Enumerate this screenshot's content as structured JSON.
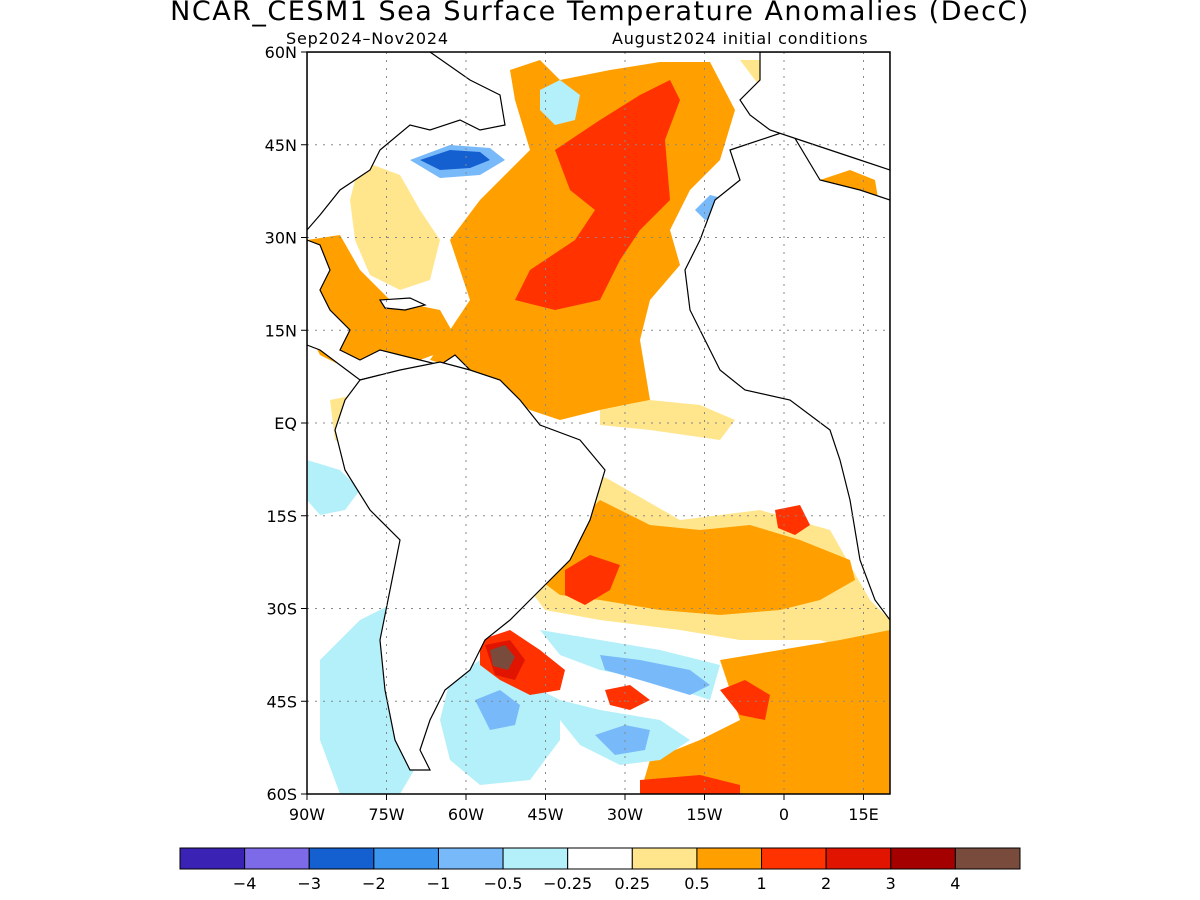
{
  "title": "NCAR_CESM1 Sea Surface Temperature Anomalies (DecC)",
  "subtitle_left": "Sep2024–Nov2024",
  "subtitle_right": "August2024 initial conditions",
  "map": {
    "lon_range": [
      -90,
      20
    ],
    "lat_range": [
      -60,
      60
    ],
    "lat_labels": [
      {
        "value": 60,
        "text": "60N"
      },
      {
        "value": 45,
        "text": "45N"
      },
      {
        "value": 30,
        "text": "30N"
      },
      {
        "value": 15,
        "text": "15N"
      },
      {
        "value": 0,
        "text": "EQ"
      },
      {
        "value": -15,
        "text": "15S"
      },
      {
        "value": -30,
        "text": "30S"
      },
      {
        "value": -45,
        "text": "45S"
      },
      {
        "value": -60,
        "text": "60S"
      }
    ],
    "lon_labels": [
      {
        "value": -90,
        "text": "90W"
      },
      {
        "value": -75,
        "text": "75W"
      },
      {
        "value": -60,
        "text": "60W"
      },
      {
        "value": -45,
        "text": "45W"
      },
      {
        "value": -30,
        "text": "30W"
      },
      {
        "value": -15,
        "text": "15W"
      },
      {
        "value": 0,
        "text": "0"
      },
      {
        "value": 15,
        "text": "15E"
      }
    ]
  },
  "colorbar": {
    "colors": [
      "#3a22b4",
      "#7c6ae8",
      "#1460d0",
      "#3c96f0",
      "#78b9fa",
      "#b4f0fa",
      "#ffffff",
      "#ffe68c",
      "#ffa000",
      "#ff3200",
      "#e11400",
      "#a50000",
      "#784b3c"
    ],
    "labels": [
      "−4",
      "−3",
      "−2",
      "−1",
      "−0.5",
      "−0.25",
      "0.25",
      "0.5",
      "1",
      "2",
      "3",
      "4"
    ]
  }
}
